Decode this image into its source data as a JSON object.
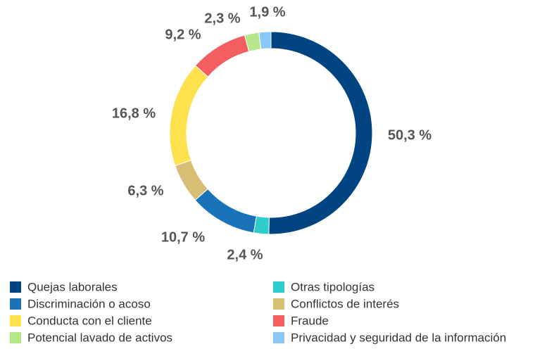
{
  "chart_data": {
    "type": "donut",
    "categories": [
      "Quejas laborales",
      "Otras tipologías",
      "Discriminación o acoso",
      "Conflictos de interés",
      "Conducta con el cliente",
      "Fraude",
      "Potencial lavado de activos",
      "Privacidad y seguridad de la información"
    ],
    "values": [
      50.3,
      2.4,
      10.7,
      6.3,
      16.8,
      9.2,
      2.3,
      1.9
    ],
    "value_labels": [
      "50,3 %",
      "2,4 %",
      "10,7 %",
      "6,3 %",
      "16,8 %",
      "9,2 %",
      "2,3 %",
      "1,9 %"
    ],
    "colors": [
      "#004481",
      "#2dcccd",
      "#1973b8",
      "#d8be75",
      "#ffe14d",
      "#f35e61",
      "#b6e78a",
      "#88c9f9"
    ],
    "legend": "bottom"
  }
}
